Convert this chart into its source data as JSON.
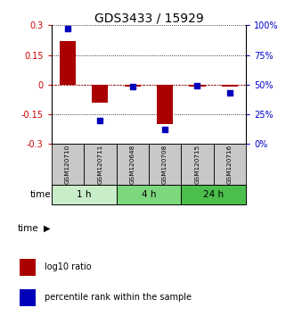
{
  "title": "GDS3433 / 15929",
  "samples": [
    "GSM120710",
    "GSM120711",
    "GSM120648",
    "GSM120708",
    "GSM120715",
    "GSM120716"
  ],
  "log10_ratio": [
    0.22,
    -0.09,
    -0.01,
    -0.2,
    -0.01,
    -0.01
  ],
  "percentile": [
    97,
    20,
    48,
    12,
    49,
    43
  ],
  "ylim_left": [
    -0.3,
    0.3
  ],
  "ylim_right": [
    0,
    100
  ],
  "yticks_left": [
    -0.3,
    -0.15,
    0,
    0.15,
    0.3
  ],
  "ytick_labels_left": [
    "-0.3",
    "-0.15",
    "0",
    "0.15",
    "0.3"
  ],
  "yticks_right": [
    0,
    25,
    50,
    75,
    100
  ],
  "ytick_labels_right": [
    "0%",
    "25%",
    "50%",
    "75%",
    "100%"
  ],
  "time_groups": [
    {
      "label": "1 h",
      "start": 0,
      "end": 2,
      "color": "#c8edc8"
    },
    {
      "label": "4 h",
      "start": 2,
      "end": 4,
      "color": "#7dd87d"
    },
    {
      "label": "24 h",
      "start": 4,
      "end": 6,
      "color": "#4cbe4c"
    }
  ],
  "bar_color": "#aa0000",
  "dot_color": "#0000bb",
  "title_fontsize": 10,
  "axis_label_color_left": "#cc0000",
  "axis_label_color_right": "#0000cc",
  "tick_box_color": "#c8c8c8",
  "legend_bar_label": "log10 ratio",
  "legend_dot_label": "percentile rank within the sample",
  "time_label": "time"
}
